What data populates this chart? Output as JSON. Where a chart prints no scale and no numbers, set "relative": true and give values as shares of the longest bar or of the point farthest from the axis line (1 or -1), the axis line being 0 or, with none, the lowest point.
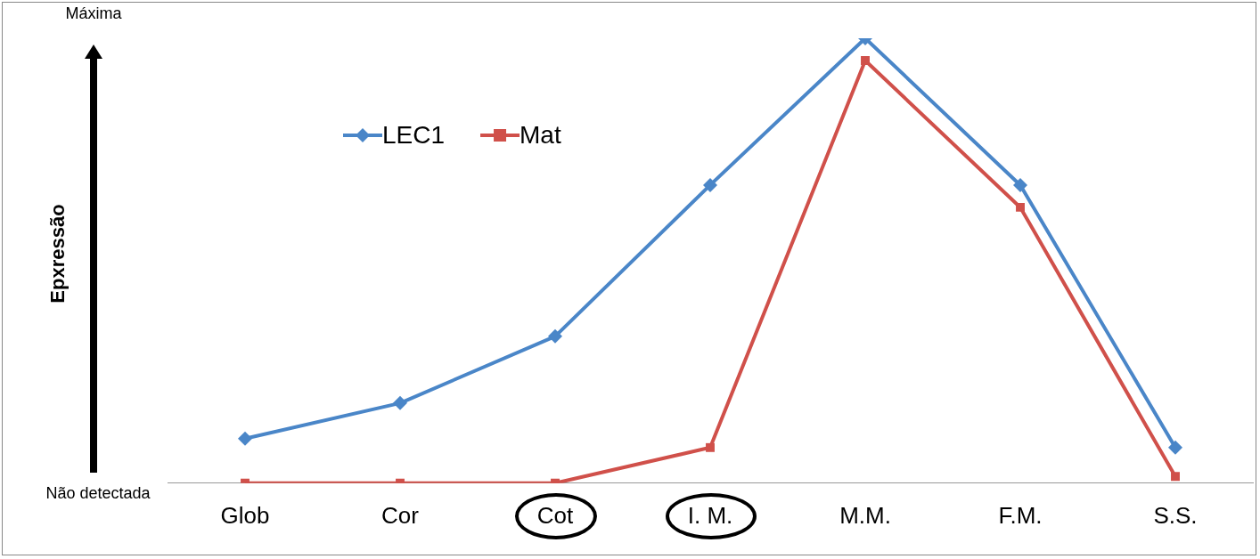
{
  "chart_data": {
    "type": "line",
    "relative": true,
    "categories": [
      "Glob",
      "Cor",
      "Cot",
      "I. M.",
      "M.M.",
      "F.M.",
      "S.S."
    ],
    "series": [
      {
        "name": "LEC1",
        "color": "#4a86c8",
        "marker": "diamond",
        "values": [
          0.1,
          0.18,
          0.33,
          0.67,
          1,
          0.67,
          0.08
        ]
      },
      {
        "name": "Mat",
        "color": "#d0504a",
        "marker": "square",
        "values": [
          0,
          0,
          0,
          0.08,
          0.95,
          0.62,
          0.015
        ]
      }
    ],
    "legend": "top left",
    "grid": false,
    "line_style": "solid",
    "annotations": [
      "Máxima",
      "Não detectada",
      "Epxressão"
    ]
  }
}
